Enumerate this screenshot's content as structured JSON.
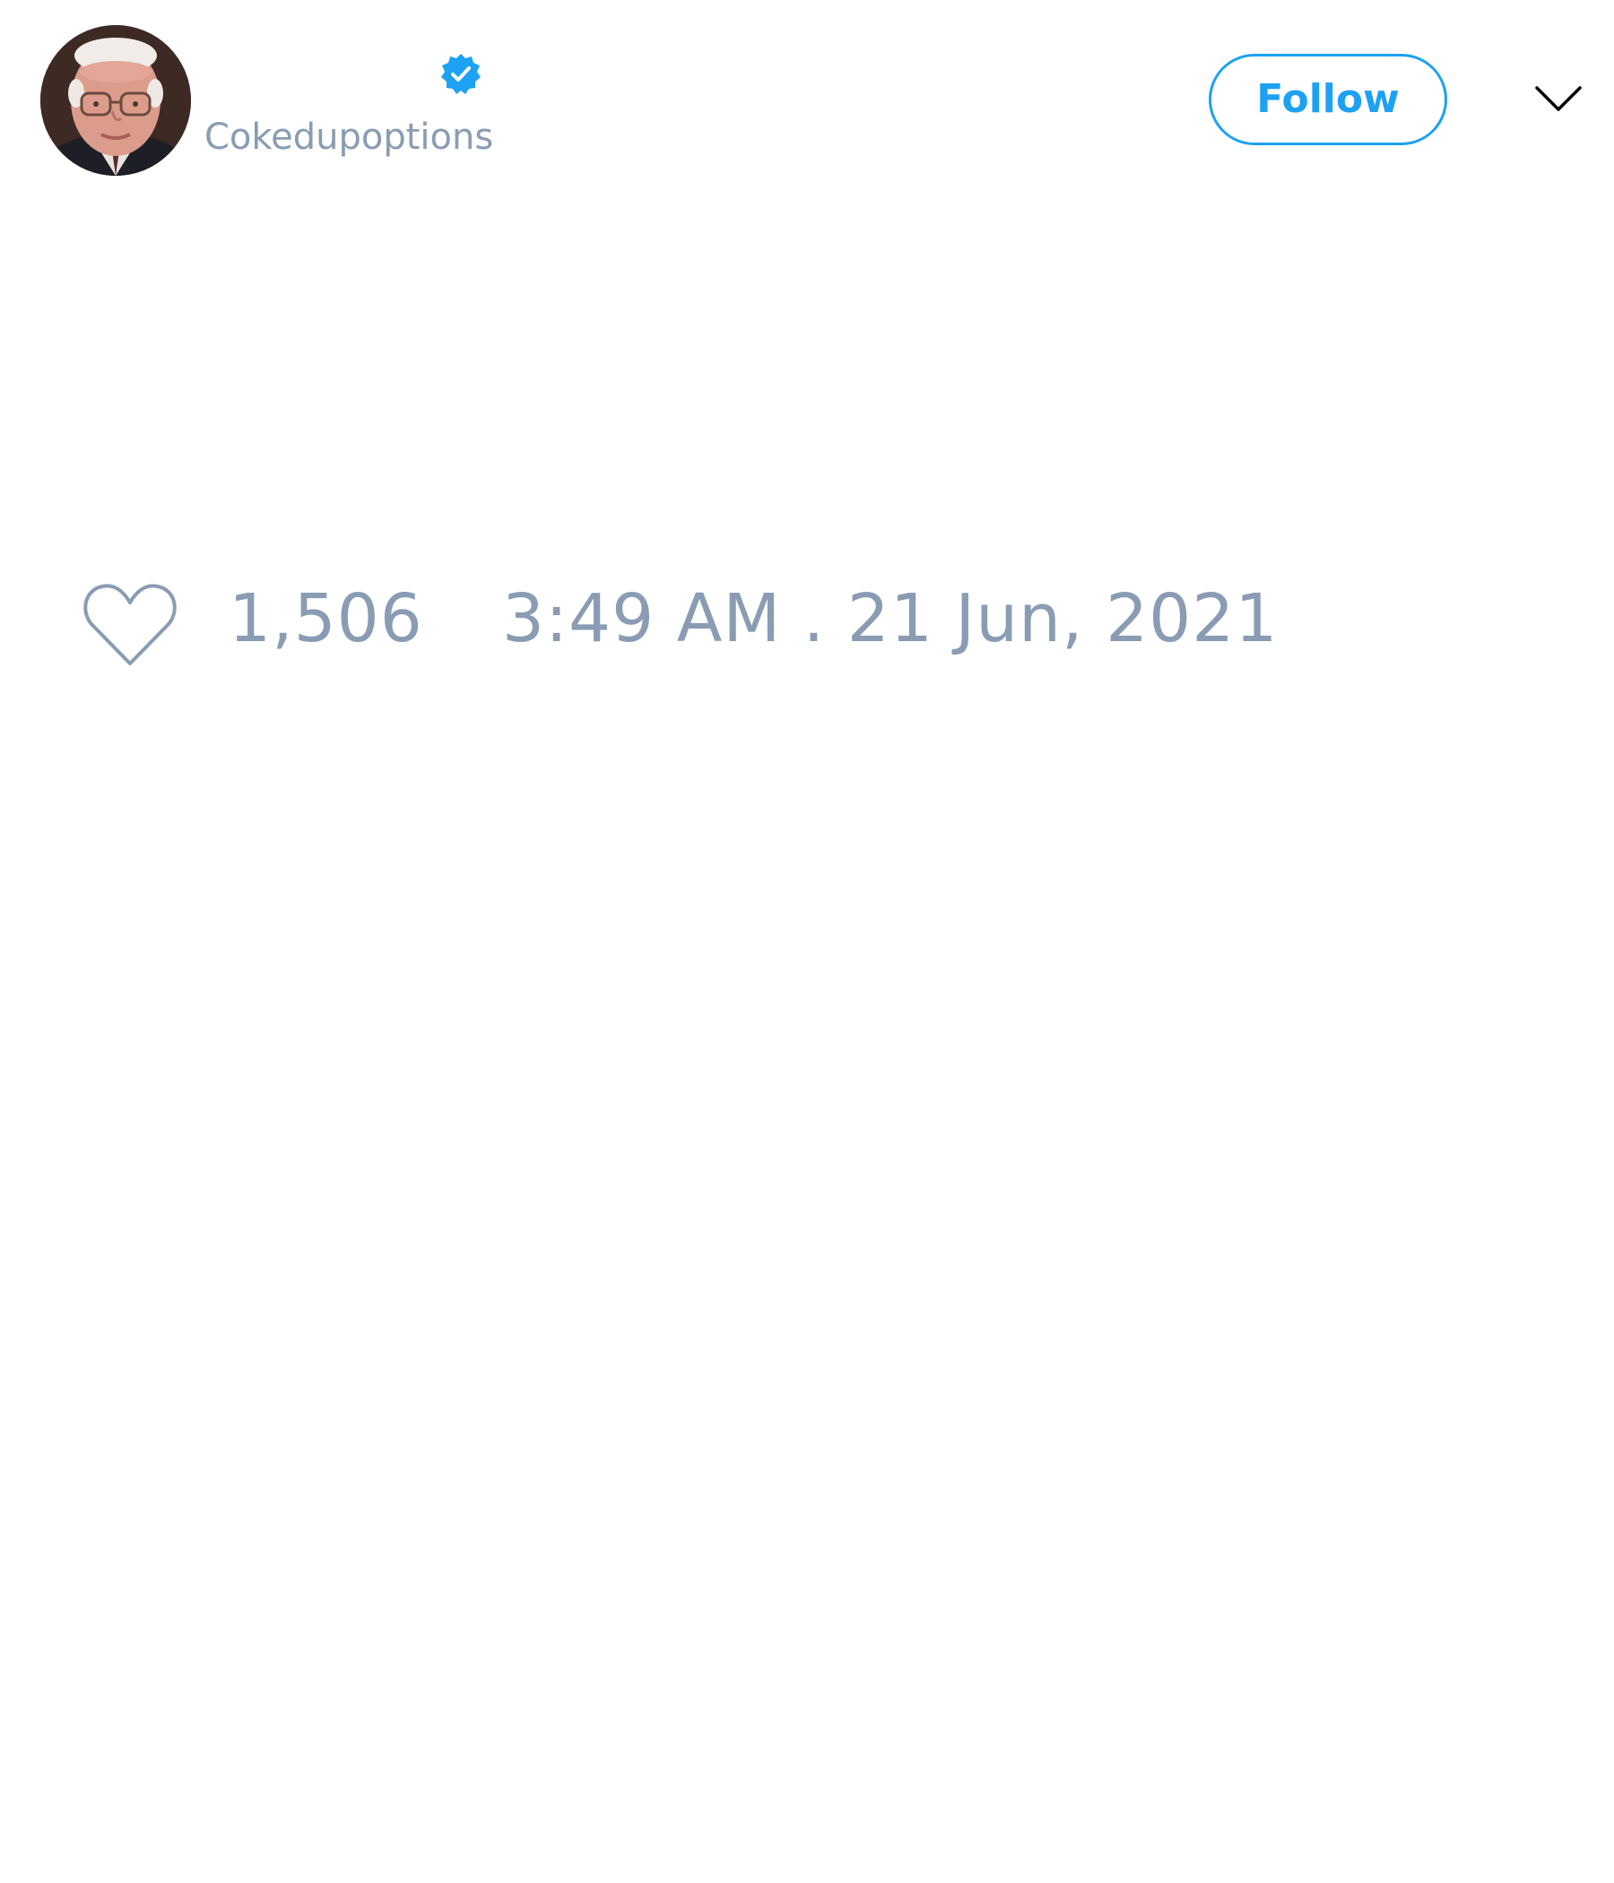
{
  "tweet": {
    "author": {
      "display_name": "",
      "handle": "Cokedupoptions",
      "verified": true,
      "avatar_icon": "person-photo-avatar"
    },
    "follow_label": "Follow",
    "menu_icon": "chevron-down-icon",
    "like_icon": "heart-icon",
    "like_count": "1,506",
    "timestamp": "3:49 AM . 21 Jun, 2021"
  },
  "colors": {
    "accent": "#1da1f2",
    "muted_text": "#8a9cb3",
    "background": "#ffffff"
  }
}
